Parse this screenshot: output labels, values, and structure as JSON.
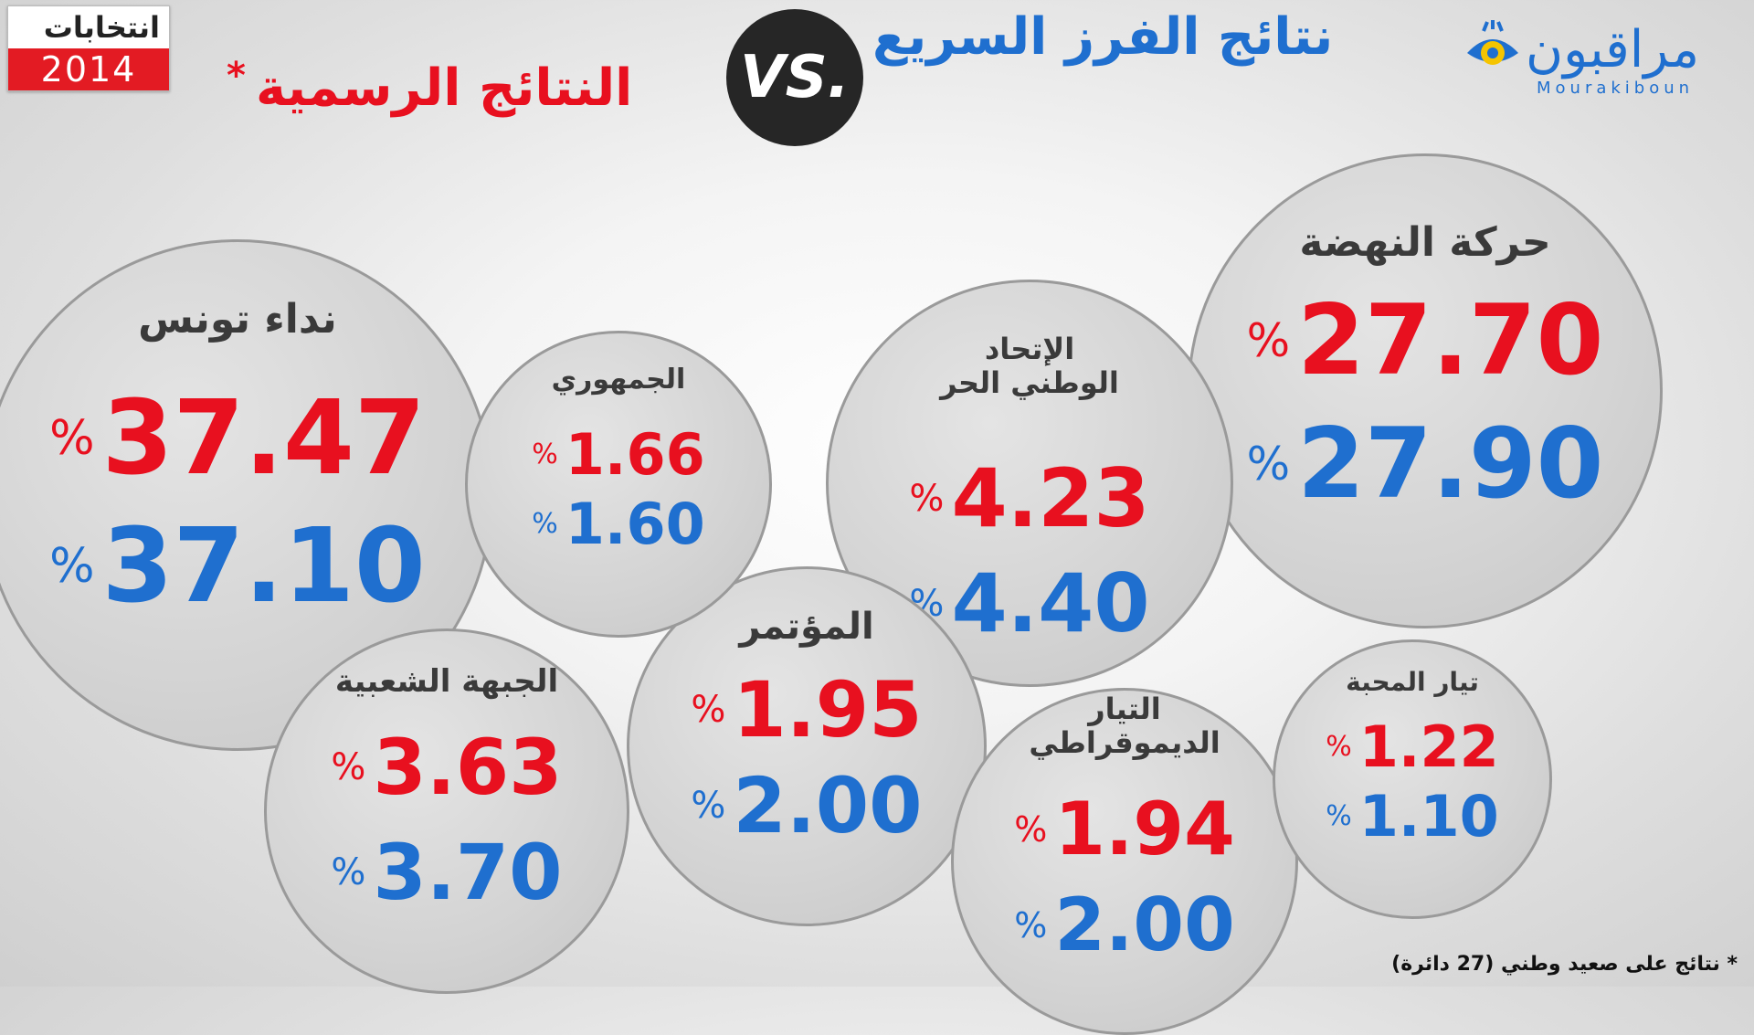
{
  "header": {
    "title_quick": "نتائج الفرز السريع",
    "vs_label": "VS.",
    "title_official": "النتائج الرسمية",
    "asterisk": "*",
    "badge_top": "انتخابات",
    "badge_year": "2014",
    "logo_arabic": "مراقبون",
    "logo_latin": "Mourakiboun"
  },
  "footnote": "* نتائج على صعيد وطني (27 دائرة)",
  "colors": {
    "official": "#e8101f",
    "quick_count": "#1f6fcf",
    "bubble": "#d3d3d3"
  },
  "chart_data": {
    "type": "table",
    "percent_sign": "%",
    "columns": [
      "party",
      "official_result",
      "quick_count"
    ],
    "rows": [
      {
        "party": "نداء تونس",
        "official": "37.47",
        "quick": "37.10"
      },
      {
        "party": "حركة النهضة",
        "official": "27.70",
        "quick": "27.90"
      },
      {
        "party": "الإتحاد الوطني الحر",
        "official": "4.23",
        "quick": "4.40"
      },
      {
        "party": "الجبهة الشعبية",
        "official": "3.63",
        "quick": "3.70"
      },
      {
        "party": "المؤتمر",
        "official": "1.95",
        "quick": "2.00"
      },
      {
        "party": "التيار الديموقراطي",
        "official": "1.94",
        "quick": "2.00"
      },
      {
        "party": "الجمهوري",
        "official": "1.66",
        "quick": "1.60"
      },
      {
        "party": "تيار المحبة",
        "official": "1.22",
        "quick": "1.10"
      }
    ]
  }
}
